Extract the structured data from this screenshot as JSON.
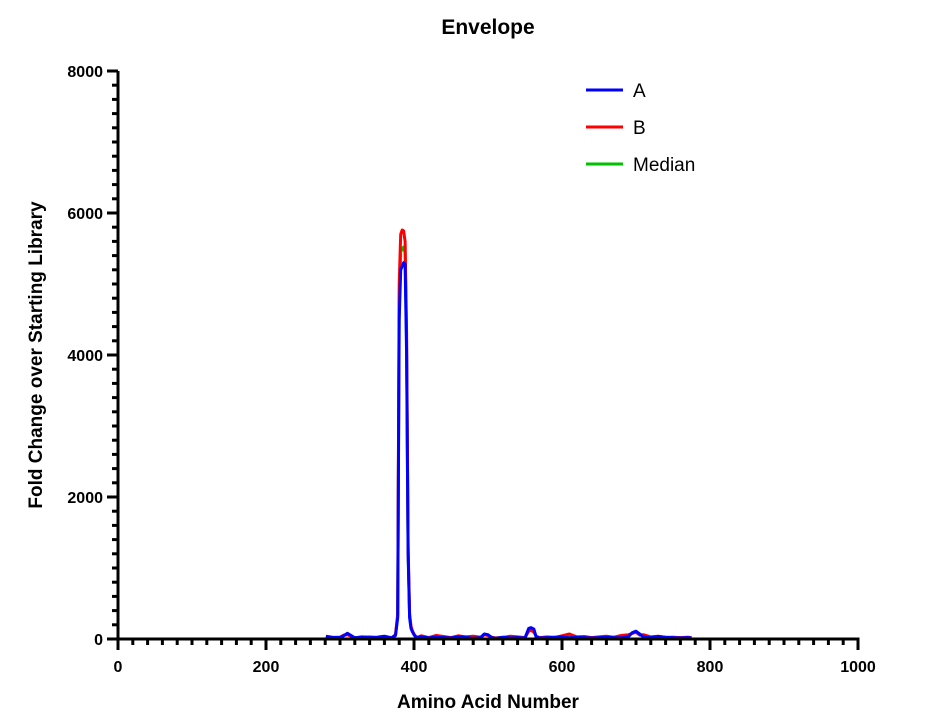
{
  "chart_data": {
    "type": "line",
    "title": "Envelope",
    "xlabel": "Amino Acid Number",
    "ylabel": "Fold Change over Starting Library",
    "xlim": [
      0,
      1000
    ],
    "ylim": [
      0,
      8000
    ],
    "x_ticks": [
      0,
      200,
      400,
      600,
      800,
      1000
    ],
    "x_minor_step": 20,
    "y_ticks": [
      0,
      2000,
      4000,
      6000,
      8000
    ],
    "y_minor_step": 200,
    "legend_position": "top-right",
    "grid": false,
    "series": [
      {
        "name": "A",
        "color": "#0000ff",
        "x": [
          281,
          290,
          300,
          305,
          310,
          315,
          320,
          330,
          340,
          350,
          360,
          370,
          375,
          378,
          380,
          382,
          384,
          386,
          388,
          390,
          392,
          394,
          396,
          398,
          400,
          402,
          405,
          410,
          420,
          430,
          440,
          450,
          460,
          470,
          480,
          490,
          495,
          500,
          505,
          510,
          520,
          530,
          540,
          550,
          555,
          558,
          562,
          565,
          570,
          580,
          590,
          600,
          610,
          620,
          630,
          640,
          650,
          660,
          670,
          680,
          690,
          695,
          700,
          705,
          710,
          720,
          730,
          740,
          750,
          760,
          770,
          775
        ],
        "y": [
          35,
          20,
          25,
          45,
          80,
          50,
          15,
          30,
          20,
          25,
          40,
          15,
          50,
          300,
          4500,
          5200,
          5250,
          5300,
          5280,
          4000,
          1200,
          300,
          150,
          100,
          60,
          30,
          20,
          30,
          15,
          25,
          20,
          15,
          30,
          25,
          10,
          20,
          70,
          60,
          20,
          10,
          25,
          15,
          20,
          15,
          150,
          160,
          140,
          30,
          15,
          20,
          25,
          30,
          15,
          25,
          20,
          15,
          20,
          25,
          20,
          15,
          35,
          90,
          110,
          70,
          30,
          20,
          35,
          25,
          20,
          15,
          20,
          15
        ]
      },
      {
        "name": "B",
        "color": "#ff0000",
        "x": [
          281,
          290,
          300,
          305,
          310,
          315,
          320,
          330,
          340,
          350,
          360,
          370,
          375,
          378,
          380,
          382,
          384,
          386,
          388,
          390,
          392,
          394,
          396,
          398,
          400,
          402,
          405,
          410,
          420,
          430,
          440,
          450,
          460,
          470,
          480,
          490,
          495,
          500,
          505,
          510,
          520,
          530,
          540,
          550,
          555,
          558,
          562,
          565,
          570,
          580,
          590,
          600,
          610,
          620,
          630,
          640,
          650,
          660,
          670,
          680,
          690,
          695,
          700,
          705,
          710,
          720,
          730,
          740,
          750,
          760,
          770,
          775
        ],
        "y": [
          40,
          25,
          20,
          55,
          60,
          40,
          20,
          25,
          30,
          20,
          30,
          20,
          60,
          350,
          5000,
          5700,
          5760,
          5750,
          5600,
          4300,
          1300,
          350,
          180,
          110,
          70,
          40,
          25,
          45,
          20,
          50,
          35,
          20,
          45,
          30,
          40,
          25,
          60,
          50,
          25,
          15,
          20,
          40,
          30,
          20,
          110,
          120,
          100,
          40,
          20,
          30,
          20,
          45,
          70,
          30,
          35,
          20,
          30,
          40,
          25,
          50,
          60,
          80,
          95,
          55,
          60,
          30,
          40,
          20,
          25,
          20,
          25,
          20
        ]
      },
      {
        "name": "Median",
        "color": "#00c000",
        "x": [
          281,
          290,
          300,
          305,
          310,
          315,
          320,
          330,
          340,
          350,
          360,
          370,
          375,
          378,
          380,
          382,
          384,
          386,
          388,
          390,
          392,
          394,
          396,
          398,
          400,
          402,
          405,
          410,
          420,
          430,
          440,
          450,
          460,
          470,
          480,
          490,
          495,
          500,
          505,
          510,
          520,
          530,
          540,
          550,
          555,
          558,
          562,
          565,
          570,
          580,
          590,
          600,
          610,
          620,
          630,
          640,
          650,
          660,
          670,
          680,
          690,
          695,
          700,
          705,
          710,
          720,
          730,
          740,
          750,
          760,
          770,
          775
        ],
        "y": [
          37,
          22,
          22,
          50,
          70,
          45,
          17,
          27,
          25,
          22,
          35,
          17,
          55,
          325,
          4750,
          5450,
          5500,
          5520,
          5440,
          4150,
          1250,
          325,
          165,
          105,
          65,
          35,
          22,
          37,
          17,
          37,
          27,
          17,
          37,
          27,
          25,
          22,
          65,
          55,
          22,
          12,
          22,
          27,
          25,
          17,
          130,
          140,
          120,
          35,
          17,
          25,
          22,
          37,
          42,
          27,
          27,
          17,
          25,
          32,
          22,
          32,
          47,
          85,
          102,
          62,
          45,
          25,
          37,
          22,
          22,
          17,
          22,
          17
        ]
      }
    ]
  }
}
